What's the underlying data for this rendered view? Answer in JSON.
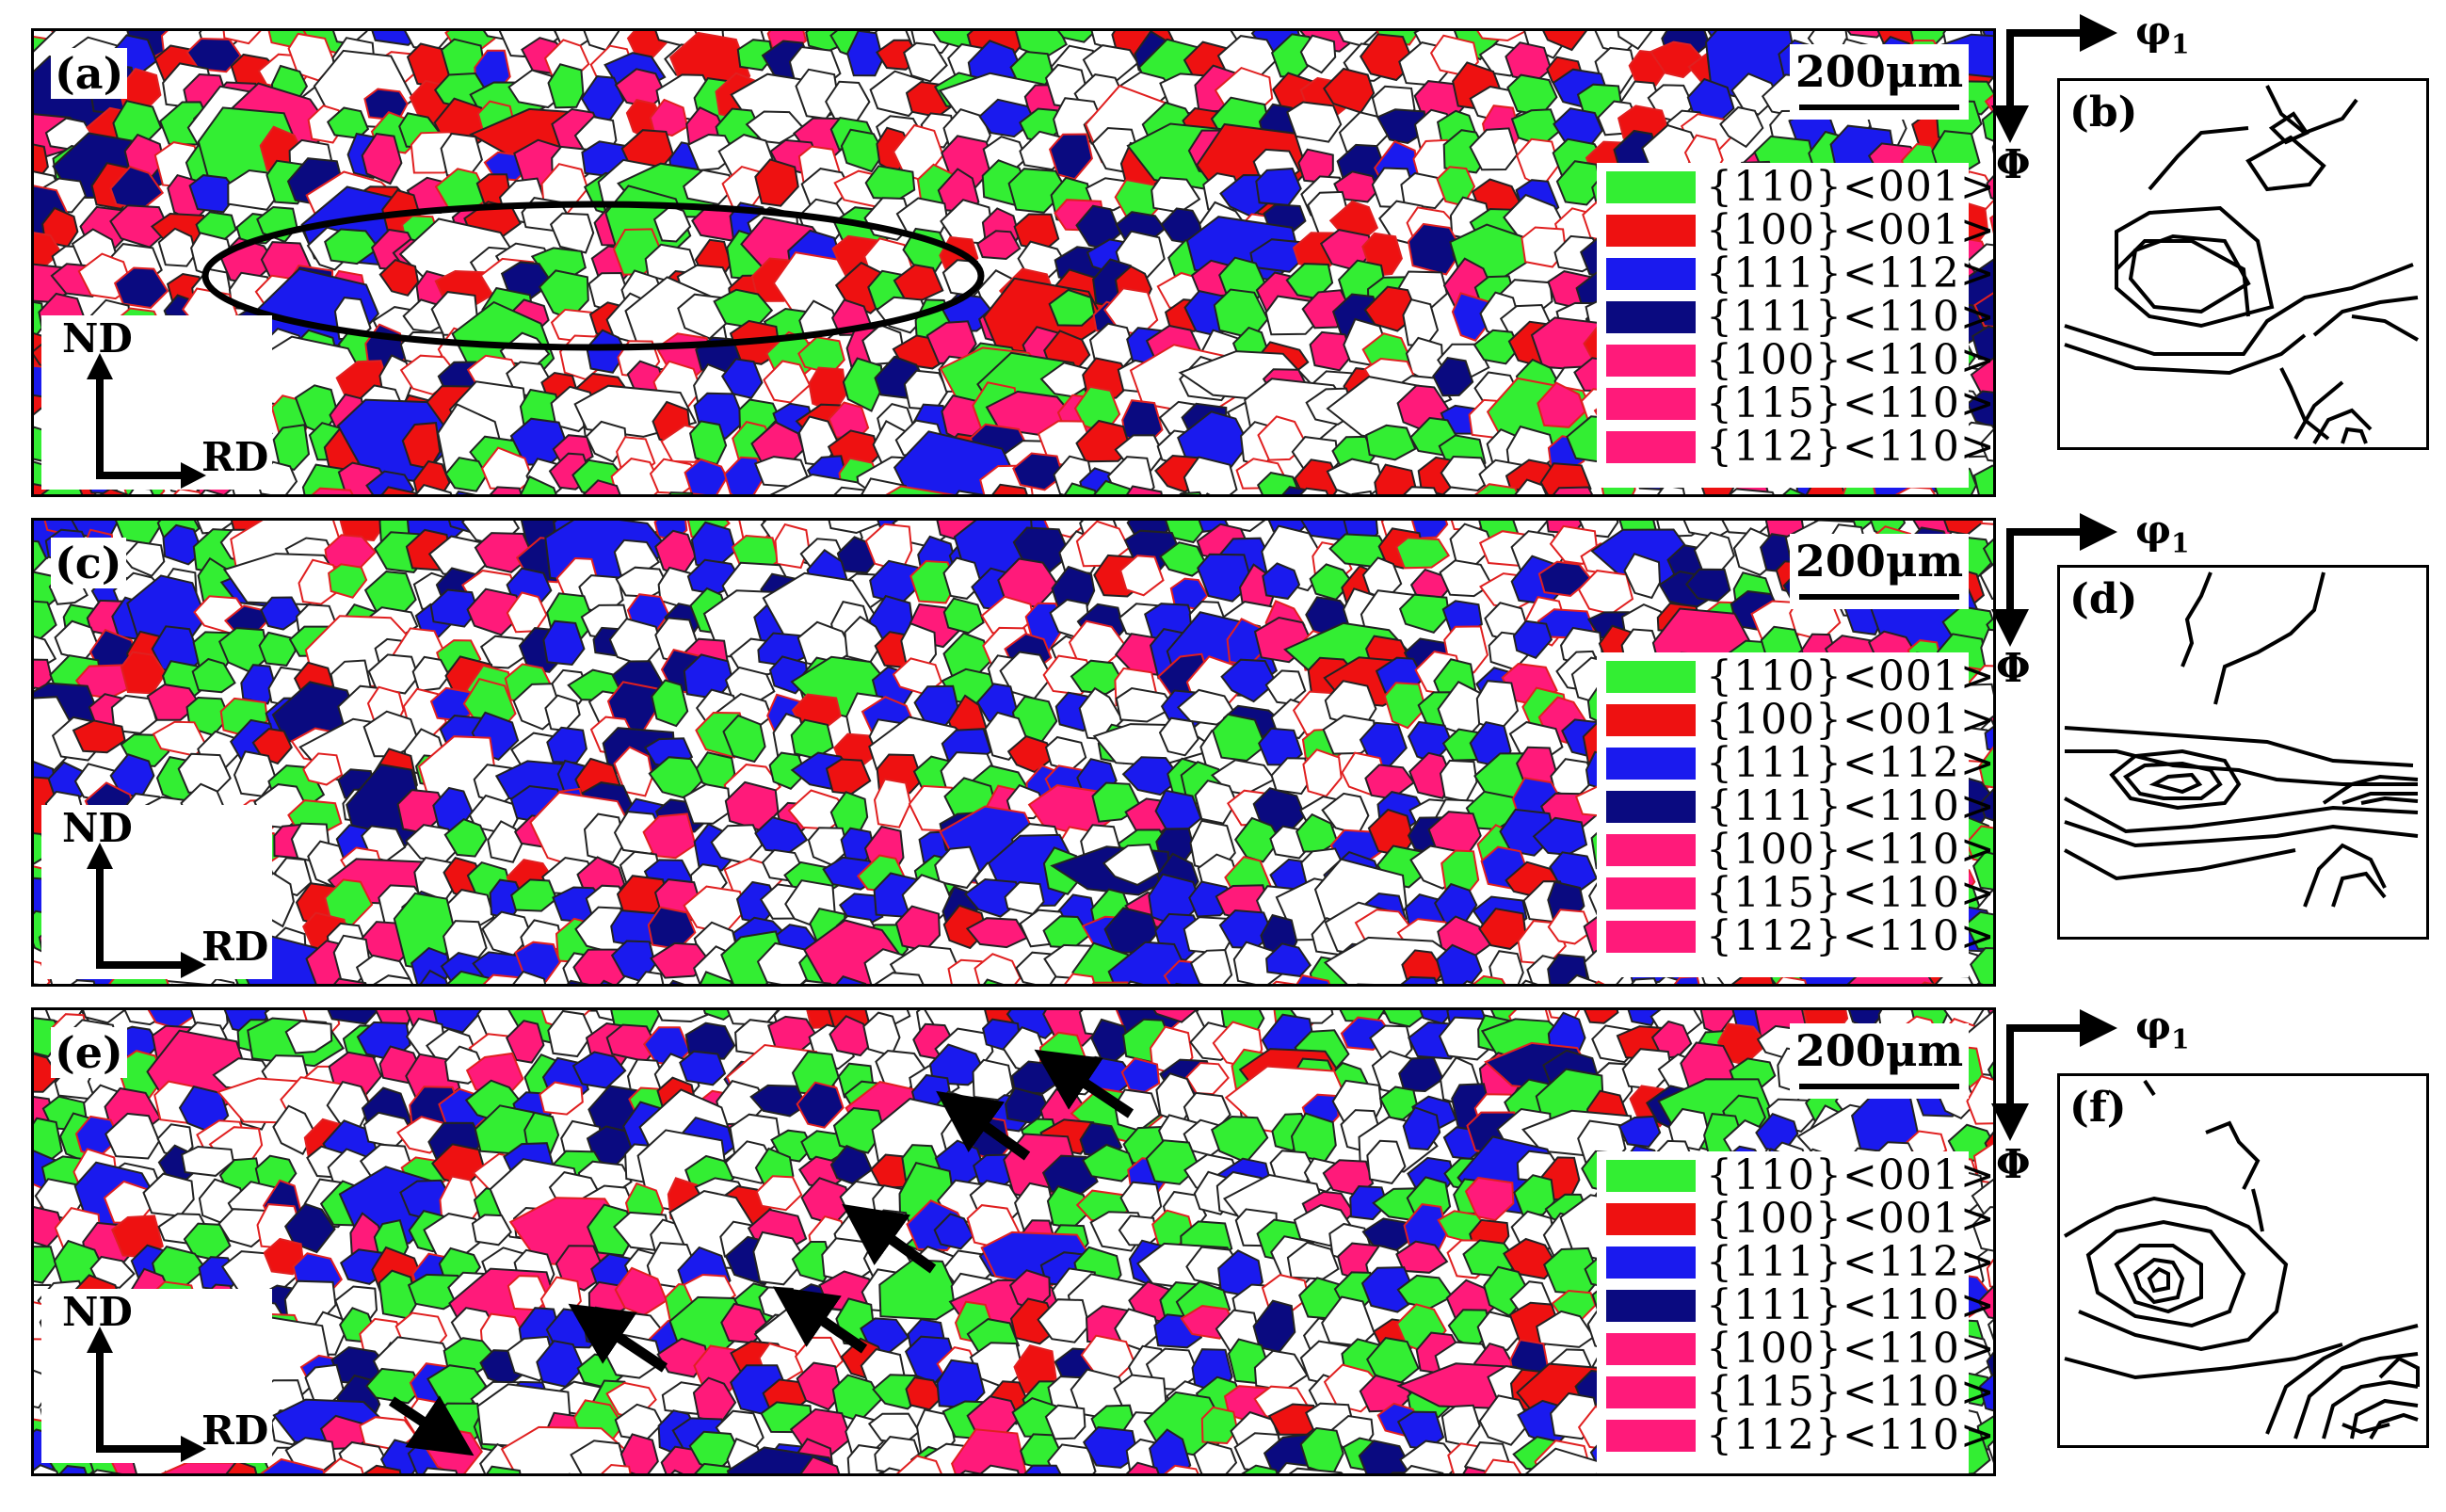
{
  "panels": [
    {
      "label": "(a)",
      "scale": "200μm"
    },
    {
      "label": "(c)",
      "scale": "200μm"
    },
    {
      "label": "(e)",
      "scale": "200μm"
    }
  ],
  "odf_panels": [
    {
      "label": "(b)"
    },
    {
      "label": "(d)"
    },
    {
      "label": "(f)"
    }
  ],
  "legend": [
    {
      "text": "{110}<001>",
      "color": "#33ee33"
    },
    {
      "text": "{100}<001>",
      "color": "#ee1111"
    },
    {
      "text": "{111}<112>",
      "color": "#1a1aee"
    },
    {
      "text": "{111}<110>",
      "color": "#0a0a80"
    },
    {
      "text": "{100}<110>",
      "color": "#ff1a7a"
    },
    {
      "text": "{115}<110>",
      "color": "#ff1a7a"
    },
    {
      "text": "{112}<110>",
      "color": "#ff1a7a"
    }
  ],
  "axes": {
    "nd": "ND",
    "rd": "RD"
  },
  "odf_axes": {
    "phi1": "φ",
    "phi1_sub": "1",
    "phi": "Φ"
  },
  "colors": {
    "white_grain": "#ffffff",
    "boundary": "#222222",
    "low_angle": "#e02020"
  }
}
